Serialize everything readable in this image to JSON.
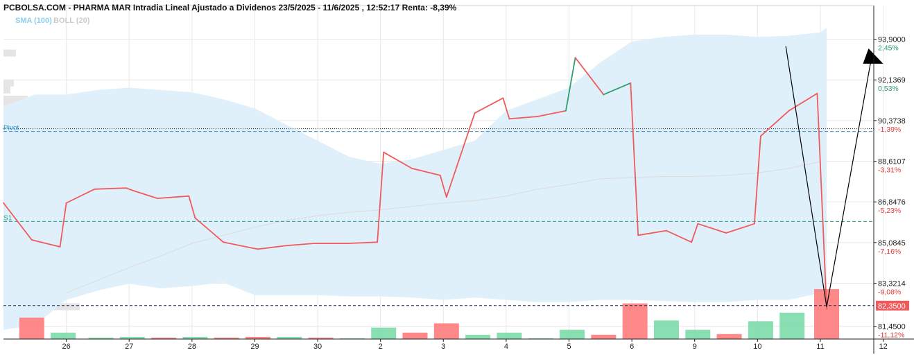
{
  "chart_data": {
    "type": "line",
    "title": "PCBOLSA.COM - PHARMA MAR Intradia Lineal Ajustado a Dividenos 23/5/2025 - 11/6/2025 , 12:52:17 Renta: -8,39%",
    "legend": [
      {
        "label": "SMA (100)",
        "color": "#8fcdf0"
      },
      {
        "label": "BOLL (20)",
        "color": "#cccccc"
      }
    ],
    "colors": {
      "up": "#2e9e6e",
      "down": "#f05a5a",
      "band_fill": "#e0f0fb",
      "sma_line": "#dddddd",
      "grid": "#e8e8e8",
      "volume_up": "#7ddcaa",
      "volume_down": "#ff7c7c",
      "pivot_line": "#2f8fcf",
      "s1_line": "#2a9a88",
      "last_price_bg": "#f05a5a",
      "pct_up": "#2e9e6e",
      "pct_down": "#e23b3b"
    },
    "x_ticks": [
      "26",
      "27",
      "28",
      "29",
      "30",
      "2",
      "3",
      "4",
      "5",
      "6",
      "9",
      "10",
      "11",
      "12"
    ],
    "y_ticks": [
      {
        "price": "93,9000",
        "pct": "2,45%",
        "dir": "up",
        "value": 93.9
      },
      {
        "price": "92,1369",
        "pct": "0,53%",
        "dir": "up",
        "value": 92.1369
      },
      {
        "price": "90,3738",
        "pct": "-1,39%",
        "dir": "down",
        "value": 90.3738
      },
      {
        "price": "88,6107",
        "pct": "-3,31%",
        "dir": "down",
        "value": 88.6107
      },
      {
        "price": "86,8476",
        "pct": "-5,23%",
        "dir": "down",
        "value": 86.8476
      },
      {
        "price": "85,0845",
        "pct": "-7,16%",
        "dir": "down",
        "value": 85.0845
      },
      {
        "price": "83,3214",
        "pct": "-9,08%",
        "dir": "down",
        "value": 83.3214
      },
      {
        "price": "81,4500",
        "pct": "-11,12%",
        "dir": "down",
        "value": 81.45
      }
    ],
    "ylim": [
      80.9,
      95.0
    ],
    "xlim": [
      0,
      13.85
    ],
    "last_price": {
      "label": "82,3500",
      "value": 82.35
    },
    "levels": [
      {
        "name": "Pivot",
        "value": 89.9
      },
      {
        "name": "S1",
        "value": 86.0
      }
    ],
    "price_series": [
      {
        "x": 0.0,
        "y": 86.8
      },
      {
        "x": 0.45,
        "y": 85.2
      },
      {
        "x": 0.9,
        "y": 84.9
      },
      {
        "x": 1.0,
        "y": 86.8
      },
      {
        "x": 1.45,
        "y": 87.4
      },
      {
        "x": 1.95,
        "y": 87.45
      },
      {
        "x": 2.05,
        "y": 87.35
      },
      {
        "x": 2.45,
        "y": 87.0
      },
      {
        "x": 2.95,
        "y": 87.1
      },
      {
        "x": 3.05,
        "y": 86.15
      },
      {
        "x": 3.5,
        "y": 85.1
      },
      {
        "x": 3.95,
        "y": 84.85
      },
      {
        "x": 4.05,
        "y": 84.8
      },
      {
        "x": 4.5,
        "y": 84.95
      },
      {
        "x": 4.95,
        "y": 85.05
      },
      {
        "x": 5.5,
        "y": 85.05
      },
      {
        "x": 5.95,
        "y": 85.1
      },
      {
        "x": 6.05,
        "y": 89.0
      },
      {
        "x": 6.5,
        "y": 88.3
      },
      {
        "x": 6.95,
        "y": 88.0
      },
      {
        "x": 7.05,
        "y": 87.05
      },
      {
        "x": 7.5,
        "y": 90.7
      },
      {
        "x": 7.95,
        "y": 91.35
      },
      {
        "x": 8.05,
        "y": 90.45
      },
      {
        "x": 8.5,
        "y": 90.55
      },
      {
        "x": 8.95,
        "y": 90.8
      },
      {
        "x": 9.1,
        "y": 93.1
      },
      {
        "x": 9.55,
        "y": 91.5
      },
      {
        "x": 9.98,
        "y": 92.0
      },
      {
        "x": 10.1,
        "y": 85.4
      },
      {
        "x": 10.55,
        "y": 85.6
      },
      {
        "x": 10.95,
        "y": 85.1
      },
      {
        "x": 11.05,
        "y": 85.9
      },
      {
        "x": 11.5,
        "y": 85.5
      },
      {
        "x": 11.95,
        "y": 85.9
      },
      {
        "x": 12.05,
        "y": 89.7
      },
      {
        "x": 12.5,
        "y": 90.8
      },
      {
        "x": 12.95,
        "y": 91.55
      },
      {
        "x": 13.1,
        "y": 82.2
      }
    ],
    "boll_upper": [
      {
        "x": 0.0,
        "y": 91.0
      },
      {
        "x": 0.5,
        "y": 91.5
      },
      {
        "x": 1.0,
        "y": 91.5
      },
      {
        "x": 1.5,
        "y": 91.7
      },
      {
        "x": 2.0,
        "y": 91.8
      },
      {
        "x": 2.5,
        "y": 91.7
      },
      {
        "x": 3.0,
        "y": 91.6
      },
      {
        "x": 3.5,
        "y": 91.3
      },
      {
        "x": 4.0,
        "y": 90.9
      },
      {
        "x": 4.5,
        "y": 90.2
      },
      {
        "x": 5.0,
        "y": 89.5
      },
      {
        "x": 5.5,
        "y": 88.8
      },
      {
        "x": 6.0,
        "y": 88.5
      },
      {
        "x": 6.5,
        "y": 88.7
      },
      {
        "x": 7.0,
        "y": 89.1
      },
      {
        "x": 7.5,
        "y": 89.5
      },
      {
        "x": 8.0,
        "y": 90.8
      },
      {
        "x": 8.5,
        "y": 91.3
      },
      {
        "x": 9.0,
        "y": 91.8
      },
      {
        "x": 9.5,
        "y": 92.9
      },
      {
        "x": 10.0,
        "y": 93.8
      },
      {
        "x": 10.5,
        "y": 94.0
      },
      {
        "x": 11.0,
        "y": 94.1
      },
      {
        "x": 11.5,
        "y": 94.1
      },
      {
        "x": 12.0,
        "y": 94.0
      },
      {
        "x": 12.5,
        "y": 94.05
      },
      {
        "x": 13.0,
        "y": 94.2
      },
      {
        "x": 13.1,
        "y": 94.4
      }
    ],
    "boll_lower": [
      {
        "x": 0.0,
        "y": 81.3
      },
      {
        "x": 0.5,
        "y": 81.5
      },
      {
        "x": 1.0,
        "y": 82.6
      },
      {
        "x": 1.5,
        "y": 83.0
      },
      {
        "x": 2.0,
        "y": 83.3
      },
      {
        "x": 2.5,
        "y": 83.1
      },
      {
        "x": 3.0,
        "y": 83.2
      },
      {
        "x": 3.5,
        "y": 83.35
      },
      {
        "x": 4.0,
        "y": 82.8
      },
      {
        "x": 4.5,
        "y": 82.8
      },
      {
        "x": 5.0,
        "y": 82.8
      },
      {
        "x": 5.5,
        "y": 82.75
      },
      {
        "x": 6.0,
        "y": 82.75
      },
      {
        "x": 6.5,
        "y": 82.7
      },
      {
        "x": 7.0,
        "y": 82.6
      },
      {
        "x": 7.5,
        "y": 82.7
      },
      {
        "x": 8.0,
        "y": 82.6
      },
      {
        "x": 8.5,
        "y": 82.5
      },
      {
        "x": 9.0,
        "y": 82.5
      },
      {
        "x": 9.5,
        "y": 82.6
      },
      {
        "x": 10.0,
        "y": 82.6
      },
      {
        "x": 10.5,
        "y": 82.55
      },
      {
        "x": 11.0,
        "y": 82.5
      },
      {
        "x": 11.5,
        "y": 82.5
      },
      {
        "x": 12.0,
        "y": 82.6
      },
      {
        "x": 12.5,
        "y": 82.6
      },
      {
        "x": 13.0,
        "y": 82.9
      },
      {
        "x": 13.1,
        "y": 83.0
      }
    ],
    "sma_series": [
      {
        "x": 1.0,
        "y": 82.9
      },
      {
        "x": 1.5,
        "y": 83.45
      },
      {
        "x": 2.0,
        "y": 84.0
      },
      {
        "x": 2.5,
        "y": 84.5
      },
      {
        "x": 3.0,
        "y": 85.05
      },
      {
        "x": 3.5,
        "y": 85.4
      },
      {
        "x": 4.0,
        "y": 85.75
      },
      {
        "x": 4.5,
        "y": 86.05
      },
      {
        "x": 5.0,
        "y": 86.25
      },
      {
        "x": 5.5,
        "y": 86.4
      },
      {
        "x": 6.0,
        "y": 86.5
      },
      {
        "x": 6.5,
        "y": 86.65
      },
      {
        "x": 7.0,
        "y": 86.8
      },
      {
        "x": 7.5,
        "y": 86.9
      },
      {
        "x": 8.0,
        "y": 87.1
      },
      {
        "x": 8.5,
        "y": 87.4
      },
      {
        "x": 9.0,
        "y": 87.6
      },
      {
        "x": 9.5,
        "y": 87.85
      },
      {
        "x": 10.0,
        "y": 87.9
      },
      {
        "x": 10.5,
        "y": 87.95
      },
      {
        "x": 11.0,
        "y": 87.95
      },
      {
        "x": 11.5,
        "y": 88.0
      },
      {
        "x": 12.0,
        "y": 88.1
      },
      {
        "x": 12.5,
        "y": 88.3
      },
      {
        "x": 13.0,
        "y": 88.6
      }
    ],
    "volume": [
      {
        "x": 0.45,
        "value": 30,
        "dir": "down"
      },
      {
        "x": 0.95,
        "value": 9,
        "dir": "up"
      },
      {
        "x": 1.55,
        "value": 2,
        "dir": "up"
      },
      {
        "x": 2.05,
        "value": 3,
        "dir": "up"
      },
      {
        "x": 2.55,
        "value": 2,
        "dir": "down"
      },
      {
        "x": 3.05,
        "value": 3,
        "dir": "up"
      },
      {
        "x": 3.55,
        "value": 2,
        "dir": "down"
      },
      {
        "x": 4.05,
        "value": 3,
        "dir": "down"
      },
      {
        "x": 4.55,
        "value": 3,
        "dir": "up"
      },
      {
        "x": 5.05,
        "value": 2,
        "dir": "down"
      },
      {
        "x": 5.55,
        "value": 1,
        "dir": "up"
      },
      {
        "x": 6.05,
        "value": 16,
        "dir": "up"
      },
      {
        "x": 6.55,
        "value": 9,
        "dir": "down"
      },
      {
        "x": 7.05,
        "value": 22,
        "dir": "down"
      },
      {
        "x": 7.55,
        "value": 6,
        "dir": "up"
      },
      {
        "x": 8.05,
        "value": 9,
        "dir": "up"
      },
      {
        "x": 8.55,
        "value": 1,
        "dir": "up"
      },
      {
        "x": 9.05,
        "value": 13,
        "dir": "up"
      },
      {
        "x": 9.55,
        "value": 6,
        "dir": "down"
      },
      {
        "x": 10.05,
        "value": 50,
        "dir": "down"
      },
      {
        "x": 10.55,
        "value": 26,
        "dir": "up"
      },
      {
        "x": 11.05,
        "value": 13,
        "dir": "up"
      },
      {
        "x": 11.55,
        "value": 7,
        "dir": "down"
      },
      {
        "x": 12.05,
        "value": 25,
        "dir": "up"
      },
      {
        "x": 12.55,
        "value": 37,
        "dir": "up"
      },
      {
        "x": 13.1,
        "value": 70,
        "dir": "down"
      }
    ],
    "volume_profile": [
      {
        "price": 93.3,
        "value": 18
      },
      {
        "price": 92.0,
        "value": 15
      },
      {
        "price": 91.7,
        "value": 10
      },
      {
        "price": 91.3,
        "value": 35
      },
      {
        "price": 91.0,
        "value": 65
      },
      {
        "price": 90.6,
        "value": 20
      },
      {
        "price": 90.0,
        "value": 30
      },
      {
        "price": 89.5,
        "value": 28
      },
      {
        "price": 89.0,
        "value": 20
      },
      {
        "price": 88.6,
        "value": 15
      },
      {
        "price": 87.7,
        "value": 18
      },
      {
        "price": 87.3,
        "value": 22
      },
      {
        "price": 86.9,
        "value": 20
      },
      {
        "price": 86.5,
        "value": 15
      },
      {
        "price": 86.1,
        "value": 12
      },
      {
        "price": 85.5,
        "value": 30
      },
      {
        "price": 85.1,
        "value": 90
      },
      {
        "price": 84.8,
        "value": 125
      },
      {
        "price": 84.5,
        "value": 22
      },
      {
        "price": 82.6,
        "value": 25
      },
      {
        "price": 82.3,
        "value": 110
      }
    ],
    "projection_arrows": [
      {
        "from": {
          "x": 12.45,
          "y": 93.6
        },
        "to": {
          "x": 13.1,
          "y": 82.3
        }
      },
      {
        "from": {
          "x": 13.1,
          "y": 82.3
        },
        "to": {
          "x": 13.8,
          "y": 93.5
        }
      }
    ],
    "grid": true
  }
}
